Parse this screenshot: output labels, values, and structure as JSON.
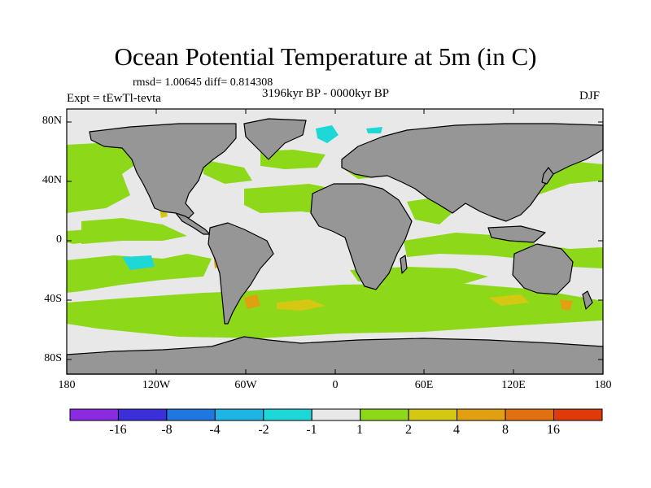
{
  "title": "Ocean Potential Temperature at 5m (in C)",
  "stats": "rmsd= 1.00645  diff= 0.814308",
  "experiment": "Expt = tEwTl-tevta",
  "period": "3196kyr BP - 0000kyr BP",
  "season": "DJF",
  "lat_labels": [
    "80N",
    "40N",
    "0",
    "40S",
    "80S"
  ],
  "lon_labels": [
    "180",
    "120W",
    "60W",
    "0",
    "60E",
    "120E",
    "180"
  ],
  "colorbar": {
    "labels": [
      "-16",
      "-8",
      "-4",
      "-2",
      "-1",
      "1",
      "2",
      "4",
      "8",
      "16"
    ],
    "colors": [
      "#8a2be2",
      "#3a2fd8",
      "#1f78e0",
      "#1eb4e6",
      "#1ed8d8",
      "#e8e8e8",
      "#8ed81a",
      "#d4c812",
      "#e0a012",
      "#e07010",
      "#e03a0a"
    ]
  },
  "colors": {
    "land": "#969696",
    "ocean_neutral": "#e8e8e8",
    "warm_1_2": "#8ed81a",
    "warm_2_4": "#d4c812",
    "warm_4_8": "#e0a012",
    "cool_m1_m2": "#1ed8d8"
  }
}
